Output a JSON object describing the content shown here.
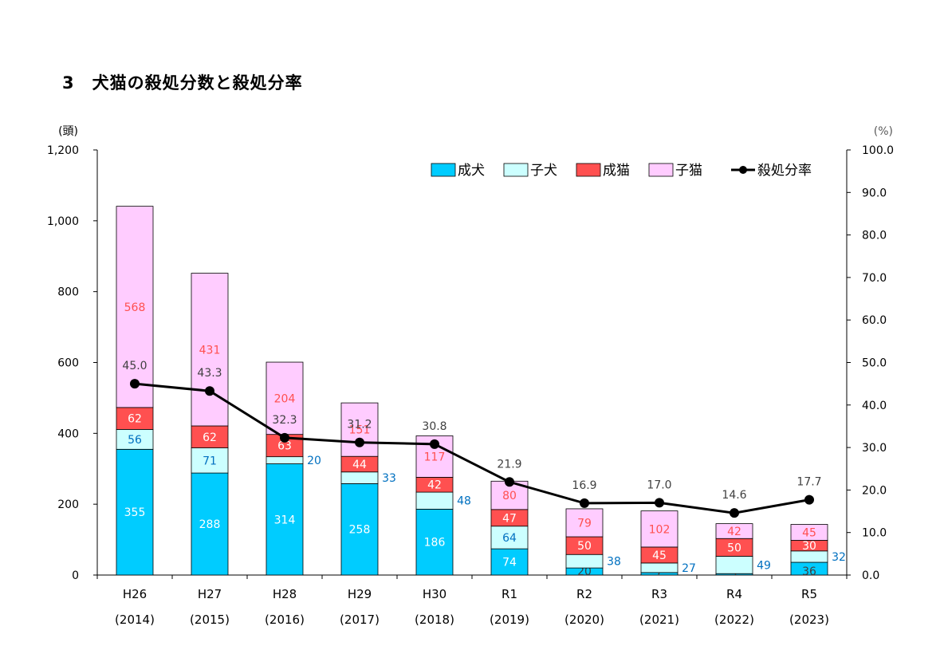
{
  "title": "3　犬猫の殺処分数と殺処分率",
  "chart_data": {
    "type": "bar",
    "stacked": true,
    "title": "3　犬猫の殺処分数と殺処分率",
    "ylabel_left": "(頭)",
    "ylabel_right": "(%)",
    "ylim_left": [
      0,
      1200
    ],
    "ylim_right": [
      0,
      100
    ],
    "yticks_left": [
      "0",
      "200",
      "400",
      "600",
      "800",
      "1,000",
      "1,200"
    ],
    "yticks_right": [
      "0.0",
      "10.0",
      "20.0",
      "30.0",
      "40.0",
      "50.0",
      "60.0",
      "70.0",
      "80.0",
      "90.0",
      "100.0"
    ],
    "categories": [
      "H26",
      "H27",
      "H28",
      "H29",
      "H30",
      "R1",
      "R2",
      "R3",
      "R4",
      "R5"
    ],
    "categories_sub": [
      "(2014)",
      "(2015)",
      "(2016)",
      "(2017)",
      "(2018)",
      "(2019)",
      "(2020)",
      "(2021)",
      "(2022)",
      "(2023)"
    ],
    "grid": false,
    "legend_position": "top-right",
    "series": [
      {
        "name": "成犬",
        "color": "#00ccff",
        "label_color": "#ffffff",
        "values": [
          355,
          288,
          314,
          258,
          186,
          74,
          20,
          7,
          4,
          36
        ]
      },
      {
        "name": "子犬",
        "color": "#ccffff",
        "label_color": "#0070c0",
        "values": [
          56,
          71,
          20,
          33,
          48,
          64,
          38,
          27,
          49,
          32
        ]
      },
      {
        "name": "成猫",
        "color": "#ff5050",
        "label_color": "#ffffff",
        "values": [
          62,
          62,
          63,
          44,
          42,
          47,
          50,
          45,
          50,
          30
        ]
      },
      {
        "name": "子猫",
        "color": "#ffccff",
        "label_color": "#ff5050",
        "values": [
          568,
          431,
          204,
          151,
          117,
          80,
          79,
          102,
          42,
          45
        ]
      }
    ],
    "line_series": {
      "name": "殺処分率",
      "axis": "right",
      "color": "#000000",
      "values": [
        45.0,
        43.3,
        32.3,
        31.2,
        30.8,
        21.9,
        16.9,
        17.0,
        14.6,
        17.7
      ],
      "labels": [
        "45.0",
        "43.3",
        "32.3",
        "31.2",
        "30.8",
        "21.9",
        "16.9",
        "17.0",
        "14.6",
        "17.7"
      ]
    }
  }
}
